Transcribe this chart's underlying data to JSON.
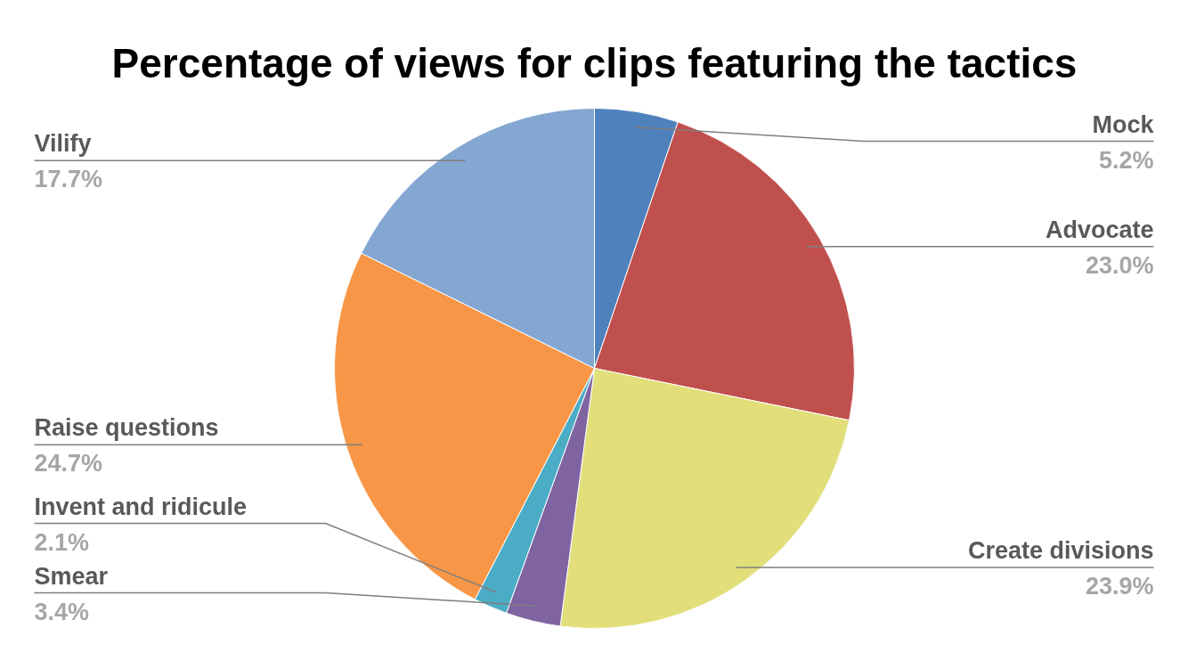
{
  "chart_data": {
    "type": "pie",
    "title": "Percentage of views for clips featuring the tactics",
    "categories": [
      "Mock",
      "Advocate",
      "Create divisions",
      "Smear",
      "Invent and ridicule",
      "Raise questions",
      "Vilify"
    ],
    "values": [
      5.2,
      23.0,
      23.9,
      3.4,
      2.1,
      24.7,
      17.7
    ],
    "colors": [
      "#4f81bd",
      "#c0504d",
      "#e2de7a",
      "#8064a2",
      "#4bacc6",
      "#f79646",
      "#84a7d2"
    ],
    "value_labels": [
      "5.2%",
      "23.0%",
      "23.9%",
      "3.4%",
      "2.1%",
      "24.7%",
      "17.7%"
    ]
  }
}
